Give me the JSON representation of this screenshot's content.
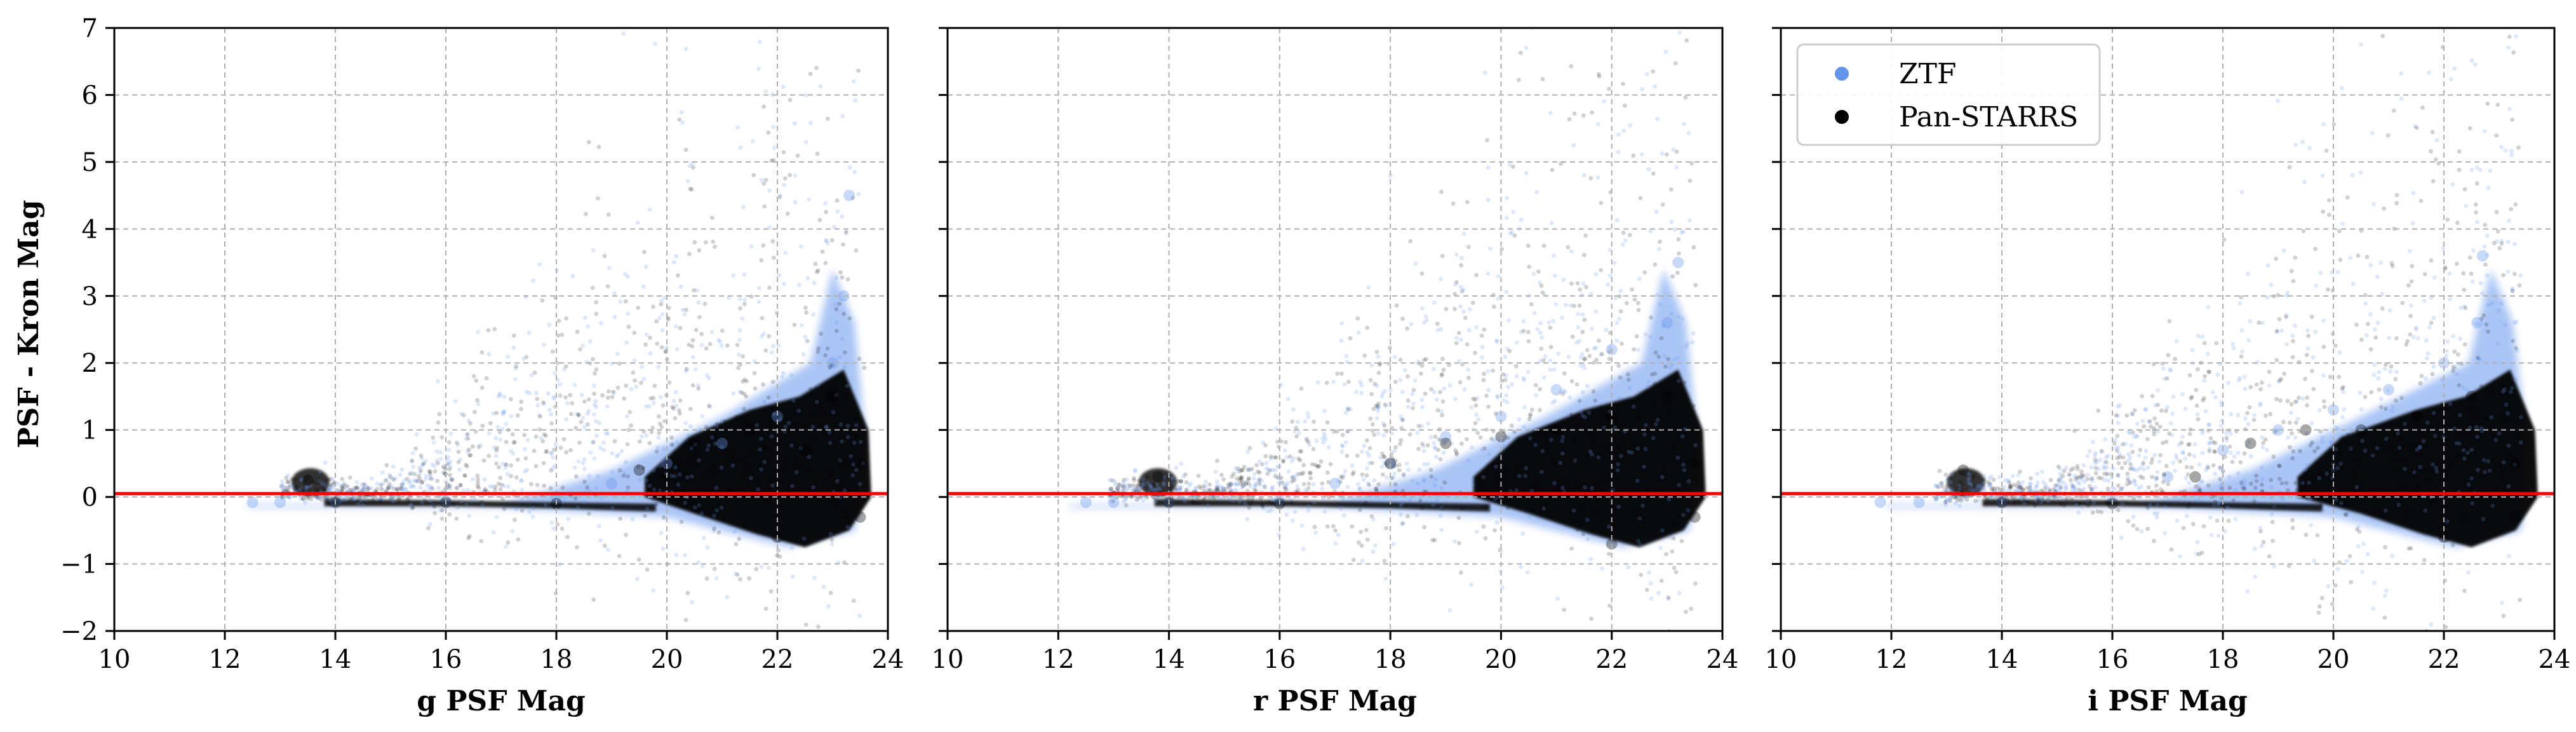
{
  "figure": {
    "ylabel": "PSF - Kron Mag"
  },
  "legend": {
    "position": "top-left of third panel",
    "entries": [
      {
        "label": "ZTF",
        "color": "#6495ED"
      },
      {
        "label": "Pan-STARRS",
        "color": "#000000"
      }
    ]
  },
  "colors": {
    "ztf": "#6495ED",
    "panstarrs": "#000000",
    "reference_line": "#FF0000",
    "grid": "#b0b0b0"
  },
  "chart_data": [
    {
      "type": "scatter",
      "xlabel": "g PSF Mag",
      "ylabel": "PSF - Kron Mag",
      "xlim": [
        10,
        24
      ],
      "ylim": [
        -2,
        7
      ],
      "xticks": [
        "10",
        "12",
        "14",
        "16",
        "18",
        "20",
        "22",
        "24"
      ],
      "yticks": [
        "−2",
        "−1",
        "0",
        "1",
        "2",
        "3",
        "4",
        "5",
        "6",
        "7"
      ],
      "grid": true,
      "reference_line_y": 0.05,
      "series": [
        {
          "name": "ZTF",
          "color": "#6495ED",
          "points": [
            [
              12.5,
              -0.08
            ],
            [
              13.0,
              -0.08
            ],
            [
              14.0,
              -0.07
            ],
            [
              16.0,
              -0.06
            ],
            [
              18.0,
              0.0
            ],
            [
              19.0,
              0.2
            ],
            [
              20.0,
              0.5
            ],
            [
              21.0,
              0.8
            ],
            [
              22.0,
              1.2
            ],
            [
              23.0,
              2.0
            ],
            [
              23.2,
              3.0
            ],
            [
              23.3,
              4.5
            ]
          ]
        },
        {
          "name": "Pan-STARRS",
          "color": "#000000",
          "points": [
            [
              13.5,
              0.25
            ],
            [
              14.0,
              -0.08
            ],
            [
              16.0,
              -0.08
            ],
            [
              18.0,
              -0.1
            ],
            [
              19.5,
              0.4
            ],
            [
              20.5,
              0.8
            ],
            [
              21.5,
              1.0
            ],
            [
              22.5,
              0.7
            ],
            [
              23.0,
              1.5
            ],
            [
              23.5,
              0.5
            ],
            [
              22.0,
              -0.6
            ],
            [
              23.5,
              -0.3
            ]
          ]
        }
      ]
    },
    {
      "type": "scatter",
      "xlabel": "r PSF Mag",
      "ylabel": "",
      "xlim": [
        10,
        24
      ],
      "ylim": [
        -2,
        7
      ],
      "xticks": [
        "10",
        "12",
        "14",
        "16",
        "18",
        "20",
        "22",
        "24"
      ],
      "yticks": [],
      "grid": true,
      "reference_line_y": 0.05,
      "series": [
        {
          "name": "ZTF",
          "color": "#6495ED",
          "points": [
            [
              12.5,
              -0.08
            ],
            [
              13.0,
              -0.08
            ],
            [
              14.0,
              -0.07
            ],
            [
              16.0,
              -0.05
            ],
            [
              17.0,
              0.2
            ],
            [
              18.0,
              0.5
            ],
            [
              19.0,
              0.9
            ],
            [
              20.0,
              1.2
            ],
            [
              21.0,
              1.6
            ],
            [
              22.0,
              2.2
            ],
            [
              23.0,
              2.6
            ],
            [
              23.2,
              3.5
            ]
          ]
        },
        {
          "name": "Pan-STARRS",
          "color": "#000000",
          "points": [
            [
              13.8,
              0.3
            ],
            [
              14.0,
              -0.08
            ],
            [
              16.0,
              -0.1
            ],
            [
              18.0,
              0.5
            ],
            [
              19.0,
              0.8
            ],
            [
              20.0,
              0.9
            ],
            [
              21.0,
              1.0
            ],
            [
              22.0,
              1.2
            ],
            [
              23.0,
              1.5
            ],
            [
              23.5,
              0.5
            ],
            [
              22.0,
              -0.7
            ],
            [
              23.5,
              -0.3
            ]
          ]
        }
      ]
    },
    {
      "type": "scatter",
      "xlabel": "i PSF Mag",
      "ylabel": "",
      "xlim": [
        10,
        24
      ],
      "ylim": [
        -2,
        7
      ],
      "xticks": [
        "10",
        "12",
        "14",
        "16",
        "18",
        "20",
        "22",
        "24"
      ],
      "yticks": [],
      "grid": true,
      "reference_line_y": 0.05,
      "series": [
        {
          "name": "ZTF",
          "color": "#6495ED",
          "points": [
            [
              11.8,
              -0.08
            ],
            [
              12.5,
              -0.08
            ],
            [
              14.0,
              -0.07
            ],
            [
              16.0,
              0.0
            ],
            [
              17.0,
              0.3
            ],
            [
              18.0,
              0.7
            ],
            [
              19.0,
              1.0
            ],
            [
              20.0,
              1.3
            ],
            [
              21.0,
              1.6
            ],
            [
              22.0,
              2.0
            ],
            [
              22.6,
              2.6
            ],
            [
              22.7,
              3.6
            ]
          ]
        },
        {
          "name": "Pan-STARRS",
          "color": "#000000",
          "points": [
            [
              13.3,
              0.4
            ],
            [
              14.0,
              -0.08
            ],
            [
              16.0,
              -0.1
            ],
            [
              17.5,
              0.3
            ],
            [
              18.5,
              0.8
            ],
            [
              19.5,
              1.0
            ],
            [
              20.5,
              1.0
            ],
            [
              21.5,
              1.2
            ],
            [
              22.5,
              1.5
            ],
            [
              23.3,
              0.5
            ],
            [
              22.0,
              -0.6
            ],
            [
              23.3,
              -0.3
            ]
          ]
        }
      ]
    }
  ]
}
